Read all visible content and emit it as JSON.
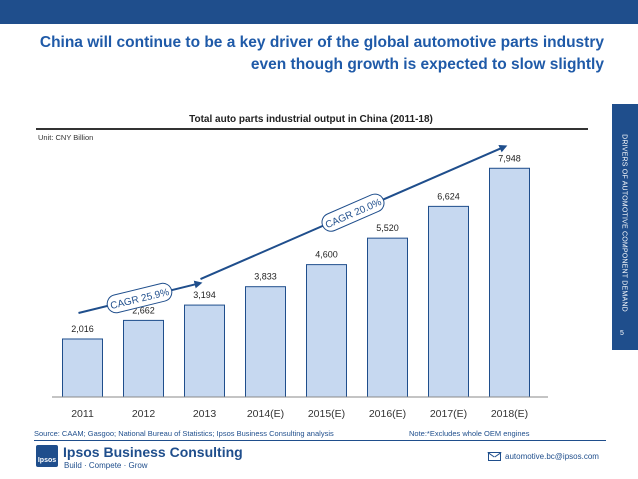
{
  "header": {
    "title_line1": "China will continue to be a key driver of the global automotive parts industry",
    "title_line2": "even though growth is expected to slow slightly"
  },
  "side_tab": {
    "label": "DRIVERS OF AUTOMOTIVE COMPONENT DEMAND",
    "page_number": "5"
  },
  "chart_data": {
    "type": "bar",
    "title": "Total auto parts industrial output in China (2011-18)",
    "unit": "Unit: CNY Billion",
    "categories": [
      "2011",
      "2012",
      "2013",
      "2014(E)",
      "2015(E)",
      "2016(E)",
      "2017(E)",
      "2018(E)"
    ],
    "values": [
      2016,
      2662,
      3194,
      3833,
      4600,
      5520,
      6624,
      7948
    ],
    "value_labels": [
      "2,016",
      "2,662",
      "3,194",
      "3,833",
      "4,600",
      "5,520",
      "6,624",
      "7,948"
    ],
    "ylim": [
      0,
      9000
    ],
    "grid": false,
    "bar_color": "#c6d8f0",
    "bar_border": "#1f4e8c",
    "annotations": [
      {
        "text": "CAGR 25.9%",
        "from": "2011",
        "to": "2013"
      },
      {
        "text": "CAGR 20.0%",
        "from": "2013",
        "to": "2018(E)"
      }
    ]
  },
  "footer": {
    "source": "Source:  CAAM; Gasgoo; National Bureau of Statistics; Ipsos Business Consulting analysis",
    "note": "Note:*Excludes whole OEM engines",
    "logo_text": "Ipsos",
    "brand": "Ipsos Business Consulting",
    "tagline": "Build · Compete · Grow",
    "email": "automotive.bc@ipsos.com"
  },
  "colors": {
    "brand": "#1f4e8c",
    "title": "#1f5aa8"
  }
}
